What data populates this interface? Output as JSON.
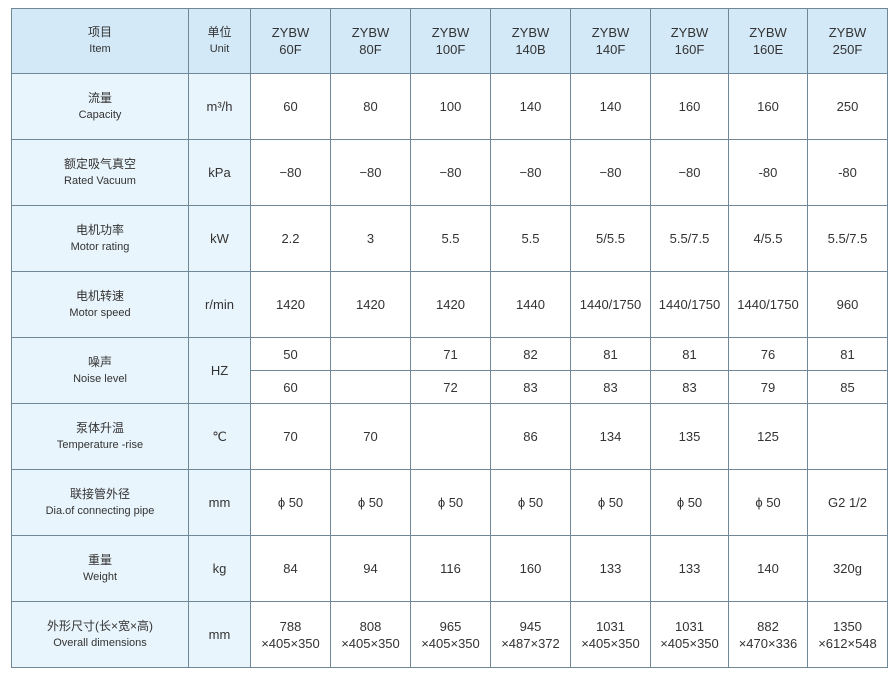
{
  "header": {
    "item_zh": "项目",
    "item_en": "Item",
    "unit_zh": "单位",
    "unit_en": "Unit",
    "models": [
      [
        "ZYBW",
        "60F"
      ],
      [
        "ZYBW",
        "80F"
      ],
      [
        "ZYBW",
        "100F"
      ],
      [
        "ZYBW",
        "140B"
      ],
      [
        "ZYBW",
        "140F"
      ],
      [
        "ZYBW",
        "160F"
      ],
      [
        "ZYBW",
        "160E"
      ],
      [
        "ZYBW",
        "250F"
      ]
    ]
  },
  "rows": [
    {
      "zh": "流量",
      "en": "Capacity",
      "unit": "m³/h",
      "values": [
        "60",
        "80",
        "100",
        "140",
        "140",
        "160",
        "160",
        "250"
      ]
    },
    {
      "zh": "额定吸气真空",
      "en": "Rated Vacuum",
      "unit": "kPa",
      "values": [
        "−80",
        "−80",
        "−80",
        "−80",
        "−80",
        "−80",
        "-80",
        "-80"
      ]
    },
    {
      "zh": "电机功率",
      "en": "Motor rating",
      "unit": "kW",
      "values": [
        "2.2",
        "3",
        "5.5",
        "5.5",
        "5/5.5",
        "5.5/7.5",
        "4/5.5",
        "5.5/7.5"
      ]
    },
    {
      "zh": "电机转速",
      "en": "Motor speed",
      "unit": "r/min",
      "values": [
        "1420",
        "1420",
        "1420",
        "1440",
        "1440/1750",
        "1440/1750",
        "1440/1750",
        "960"
      ]
    }
  ],
  "noise": {
    "zh": "噪声",
    "en": "Noise level",
    "unit": "HZ",
    "top": [
      "50",
      "",
      "71",
      "82",
      "81",
      "81",
      "76",
      "81"
    ],
    "bottom": [
      "60",
      "",
      "72",
      "83",
      "83",
      "83",
      "79",
      "85"
    ]
  },
  "rows2": [
    {
      "zh": "泵体升温",
      "en": "Temperature -rise",
      "unit": "℃",
      "values": [
        "70",
        "70",
        "",
        "86",
        "134",
        "135",
        "125",
        ""
      ]
    },
    {
      "zh": "联接管外径",
      "en": "Dia.of connecting pipe",
      "unit": "mm",
      "values": [
        "ϕ 50",
        "ϕ 50",
        "ϕ 50",
        "ϕ 50",
        "ϕ 50",
        "ϕ 50",
        "ϕ 50",
        "G2  1/2"
      ]
    },
    {
      "zh": "重量",
      "en": "Weight",
      "unit": "kg",
      "values": [
        "84",
        "94",
        "116",
        "160",
        "133",
        "133",
        "140",
        "320g"
      ]
    },
    {
      "zh": "外形尺寸(长×宽×高)",
      "en": "Overall dimensions",
      "unit": "mm",
      "values": [
        [
          "788",
          "×405×350"
        ],
        [
          "808",
          "×405×350"
        ],
        [
          "965",
          "×405×350"
        ],
        [
          "945",
          "×487×372"
        ],
        [
          "1031",
          "×405×350"
        ],
        [
          "1031",
          "×405×350"
        ],
        [
          "882",
          "×470×336"
        ],
        [
          "1350",
          "×612×548"
        ]
      ]
    }
  ]
}
